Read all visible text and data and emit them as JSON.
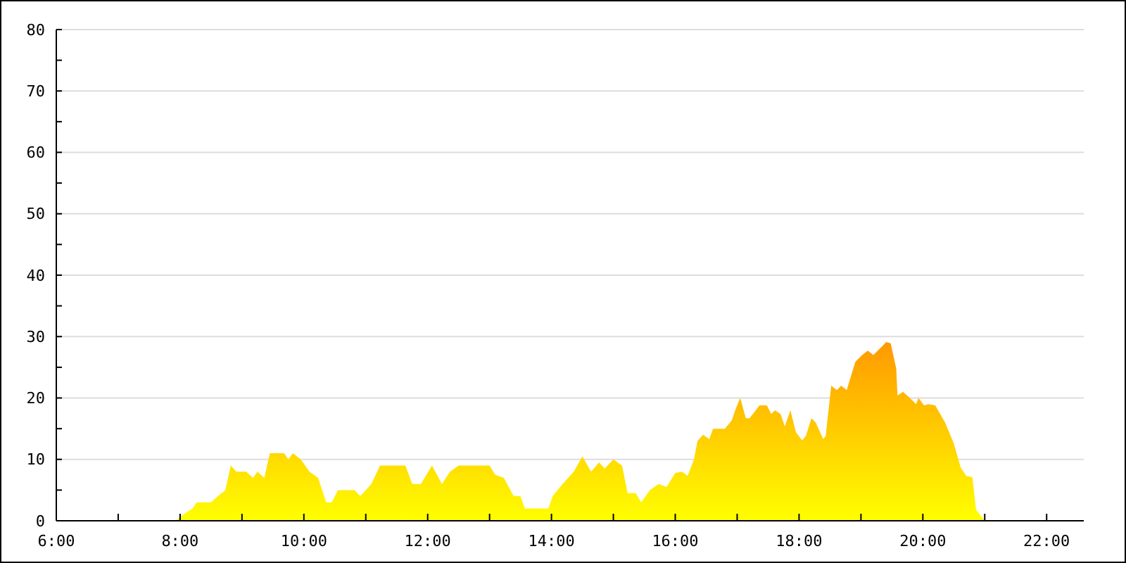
{
  "chart_data": {
    "type": "area",
    "grid": "y",
    "xlim": [
      6,
      22.6
    ],
    "ylim": [
      0,
      80
    ],
    "xticks": [
      {
        "value": 6,
        "label": "6:00"
      },
      {
        "value": 7,
        "label": null
      },
      {
        "value": 8,
        "label": "8:00"
      },
      {
        "value": 9,
        "label": null
      },
      {
        "value": 10,
        "label": "10:00"
      },
      {
        "value": 11,
        "label": null
      },
      {
        "value": 12,
        "label": "12:00"
      },
      {
        "value": 13,
        "label": null
      },
      {
        "value": 14,
        "label": "14:00"
      },
      {
        "value": 15,
        "label": null
      },
      {
        "value": 16,
        "label": "16:00"
      },
      {
        "value": 17,
        "label": null
      },
      {
        "value": 18,
        "label": "18:00"
      },
      {
        "value": 19,
        "label": null
      },
      {
        "value": 20,
        "label": "20:00"
      },
      {
        "value": 21,
        "label": null
      },
      {
        "value": 22,
        "label": "22:00"
      }
    ],
    "yticks": [
      0,
      {
        "value": 5,
        "label": null
      },
      10,
      {
        "value": 15,
        "label": null
      },
      20,
      {
        "value": 25,
        "label": null
      },
      30,
      {
        "value": 35,
        "label": null
      },
      40,
      {
        "value": 45,
        "label": null
      },
      50,
      {
        "value": 55,
        "label": null
      },
      60,
      {
        "value": 65,
        "label": null
      },
      70,
      {
        "value": 75,
        "label": null
      },
      80
    ],
    "series": [
      {
        "color": "#ff9900",
        "x": [
          7.93,
          8.05,
          8.2,
          8.27,
          8.5,
          8.61,
          8.73,
          8.82,
          8.91,
          9.07,
          9.18,
          9.25,
          9.36,
          9.45,
          9.68,
          9.75,
          9.82,
          9.95,
          10.09,
          10.23,
          10.36,
          10.45,
          10.55,
          10.82,
          10.91,
          11.09,
          11.23,
          11.64,
          11.75,
          11.89,
          12.07,
          12.23,
          12.36,
          12.5,
          13.0,
          13.09,
          13.23,
          13.39,
          13.5,
          13.57,
          13.95,
          14.02,
          14.18,
          14.36,
          14.5,
          14.64,
          14.77,
          14.86,
          15.0,
          15.14,
          15.23,
          15.36,
          15.45,
          15.59,
          15.73,
          15.86,
          16.0,
          16.11,
          16.2,
          16.3,
          16.36,
          16.45,
          16.55,
          16.61,
          16.8,
          16.91,
          16.98,
          17.05,
          17.14,
          17.2,
          17.3,
          17.36,
          17.48,
          17.55,
          17.61,
          17.7,
          17.77,
          17.86,
          17.95,
          18.05,
          18.11,
          18.2,
          18.27,
          18.39,
          18.43,
          18.52,
          18.61,
          18.68,
          18.77,
          18.84,
          18.91,
          19.02,
          19.11,
          19.2,
          19.34,
          19.41,
          19.48,
          19.57,
          19.59,
          19.68,
          19.8,
          19.89,
          19.93,
          20.02,
          20.09,
          20.2,
          20.36,
          20.5,
          20.61,
          20.7,
          20.8,
          20.86,
          20.93,
          21.0
        ],
        "values": [
          0,
          1,
          2,
          3,
          3,
          4,
          5,
          9,
          8,
          8,
          7,
          8,
          7,
          11,
          11,
          10,
          11,
          10,
          8,
          7,
          3,
          3,
          5,
          5,
          4,
          6,
          9,
          9,
          6,
          6,
          9,
          6,
          8,
          9,
          9,
          7.5,
          7,
          4,
          4,
          2,
          2,
          4,
          6,
          8,
          10.5,
          8,
          9.5,
          8.5,
          10,
          9,
          4.5,
          4.5,
          3,
          5,
          6,
          5.5,
          7.8,
          8,
          7.3,
          9.9,
          13,
          14,
          13.3,
          15,
          15,
          16.3,
          18.3,
          20,
          16.7,
          16.7,
          18,
          18.8,
          18.8,
          17.4,
          18,
          17.4,
          15.4,
          18,
          14.4,
          13.1,
          13.8,
          16.7,
          16,
          13.3,
          13.8,
          22,
          21.3,
          22,
          21.3,
          23.6,
          25.9,
          27,
          27.7,
          27,
          28.4,
          29.1,
          28.9,
          24.8,
          20.4,
          21,
          19.9,
          19,
          20,
          18.8,
          19,
          18.8,
          16,
          12.6,
          8.7,
          7.3,
          7.1,
          1.8,
          0.9,
          0
        ]
      }
    ]
  }
}
